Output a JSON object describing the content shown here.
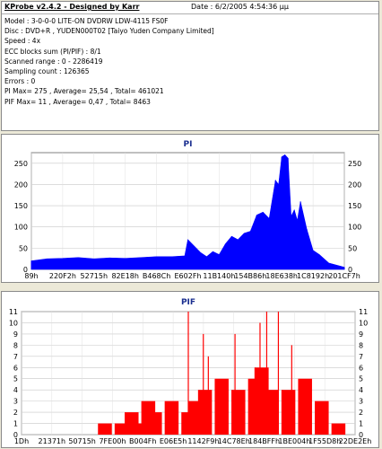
{
  "info": {
    "title": "KProbe v2.4.2 - Designed by Karr",
    "date": "Date : 6/2/2005 4:54:36 μμ",
    "lines": [
      "Model : 3-0-0-0 LITE-ON DVDRW LDW-4115   FS0F",
      "Disc : DVD+R , YUDEN000T02 [Taiyo Yuden Company Limited]",
      "Speed : 4x",
      "ECC blocks sum (PI/PIF) : 8/1",
      "Scanned range : 0 - 2286419",
      "Sampling count : 126365",
      "Errors : 0",
      "PI Max= 275 , Average= 25,54 , Total= 461021",
      "PIF Max= 11 , Average= 0,47 , Total= 8463"
    ]
  },
  "chart_data": [
    {
      "type": "area",
      "title": "PI",
      "ylim": [
        0,
        275
      ],
      "yticks": [
        0,
        50,
        100,
        150,
        200,
        250
      ],
      "xtick_labels": [
        "89h",
        "220F2h",
        "52715h",
        "82E18h",
        "B468Ch",
        "E602Fh",
        "11B140h",
        "154B86h",
        "18E638h",
        "1C8192h",
        "201CF7h"
      ],
      "color": "#0000ff",
      "grid": true,
      "x": [
        0,
        0.05,
        0.1,
        0.15,
        0.2,
        0.25,
        0.3,
        0.35,
        0.4,
        0.45,
        0.49,
        0.5,
        0.52,
        0.54,
        0.56,
        0.58,
        0.6,
        0.62,
        0.64,
        0.66,
        0.68,
        0.7,
        0.72,
        0.74,
        0.76,
        0.78,
        0.79,
        0.8,
        0.81,
        0.82,
        0.83,
        0.84,
        0.85,
        0.86,
        0.88,
        0.9,
        0.92,
        0.95,
        1.0
      ],
      "values": [
        20,
        25,
        26,
        28,
        25,
        27,
        26,
        28,
        30,
        30,
        32,
        70,
        55,
        40,
        30,
        42,
        35,
        60,
        78,
        70,
        85,
        90,
        128,
        135,
        120,
        210,
        200,
        265,
        270,
        262,
        125,
        140,
        115,
        160,
        95,
        45,
        35,
        15,
        5
      ]
    },
    {
      "type": "bar",
      "title": "PIF",
      "ylim": [
        0,
        11
      ],
      "yticks": [
        0,
        1,
        2,
        3,
        4,
        5,
        6,
        7,
        8,
        9,
        10,
        11
      ],
      "xtick_labels": [
        "1Dh",
        "21371h",
        "50715h",
        "7FE00h",
        "B004Fh",
        "E06E5h",
        "1142F9h",
        "14C78Eh",
        "184BFFh",
        "1BE004h",
        "1F55D8h",
        "22DE2Eh"
      ],
      "color": "#ff0000",
      "grid": true,
      "x": [
        0,
        0.05,
        0.1,
        0.15,
        0.2,
        0.25,
        0.3,
        0.33,
        0.35,
        0.38,
        0.4,
        0.45,
        0.5,
        0.52,
        0.55,
        0.6,
        0.65,
        0.7,
        0.72,
        0.75,
        0.8,
        0.85,
        0.9,
        0.95,
        1.0
      ],
      "values": [
        0,
        0,
        0,
        0,
        0,
        1,
        1,
        2,
        1,
        3,
        2,
        3,
        2,
        3,
        4,
        5,
        4,
        5,
        6,
        4,
        4,
        5,
        3,
        1,
        0
      ],
      "spikes": [
        {
          "x": 0.5,
          "value": 11
        },
        {
          "x": 0.545,
          "value": 9
        },
        {
          "x": 0.56,
          "value": 7
        },
        {
          "x": 0.64,
          "value": 9
        },
        {
          "x": 0.7,
          "value": 6
        },
        {
          "x": 0.715,
          "value": 10
        },
        {
          "x": 0.735,
          "value": 11
        },
        {
          "x": 0.77,
          "value": 11
        },
        {
          "x": 0.81,
          "value": 8
        }
      ]
    }
  ]
}
